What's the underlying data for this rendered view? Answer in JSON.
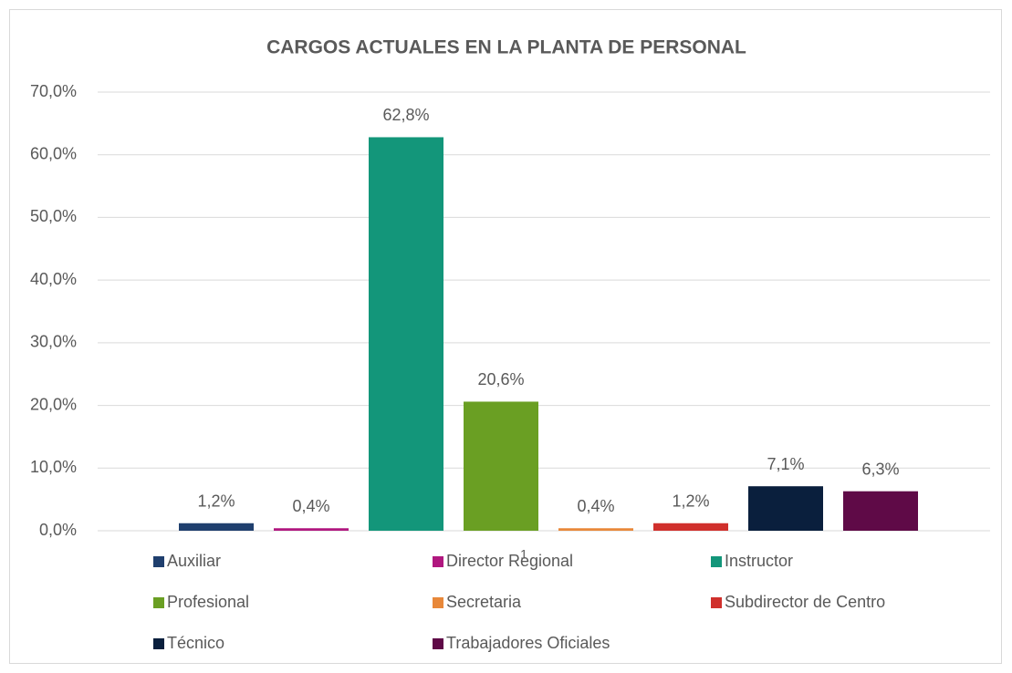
{
  "chart_data": {
    "type": "bar",
    "title": "CARGOS ACTUALES EN LA PLANTA DE PERSONAL",
    "categories": [
      "1"
    ],
    "series": [
      {
        "name": "Auxiliar",
        "color": "#1f3f6e",
        "values": [
          1.2
        ],
        "value_labels": [
          "1,2%"
        ]
      },
      {
        "name": "Director Regional",
        "color": "#b0177f",
        "values": [
          0.4
        ],
        "value_labels": [
          "0,4%"
        ]
      },
      {
        "name": "Instructor",
        "color": "#13967a",
        "values": [
          62.8
        ],
        "value_labels": [
          "62,8%"
        ]
      },
      {
        "name": "Profesional",
        "color": "#6a9f23",
        "values": [
          20.6
        ],
        "value_labels": [
          "20,6%"
        ]
      },
      {
        "name": "Secretaria",
        "color": "#e8883a",
        "values": [
          0.4
        ],
        "value_labels": [
          "0,4%"
        ]
      },
      {
        "name": "Subdirector de Centro",
        "color": "#d0302c",
        "values": [
          1.2
        ],
        "value_labels": [
          "1,2%"
        ]
      },
      {
        "name": "Técnico",
        "color": "#0a1f3d",
        "values": [
          7.1
        ],
        "value_labels": [
          "7,1%"
        ]
      },
      {
        "name": "Trabajadores Oficiales",
        "color": "#5f0a47",
        "values": [
          6.3
        ],
        "value_labels": [
          "6,3%"
        ]
      }
    ],
    "ylim": [
      0,
      70
    ],
    "yticks": [
      {
        "value": 0,
        "label": "0,0%"
      },
      {
        "value": 10,
        "label": "10,0%"
      },
      {
        "value": 20,
        "label": "20,0%"
      },
      {
        "value": 30,
        "label": "30,0%"
      },
      {
        "value": 40,
        "label": "40,0%"
      },
      {
        "value": 50,
        "label": "50,0%"
      },
      {
        "value": 60,
        "label": "60,0%"
      },
      {
        "value": 70,
        "label": "70,0%"
      }
    ],
    "grid": true,
    "legend": "bottom"
  }
}
